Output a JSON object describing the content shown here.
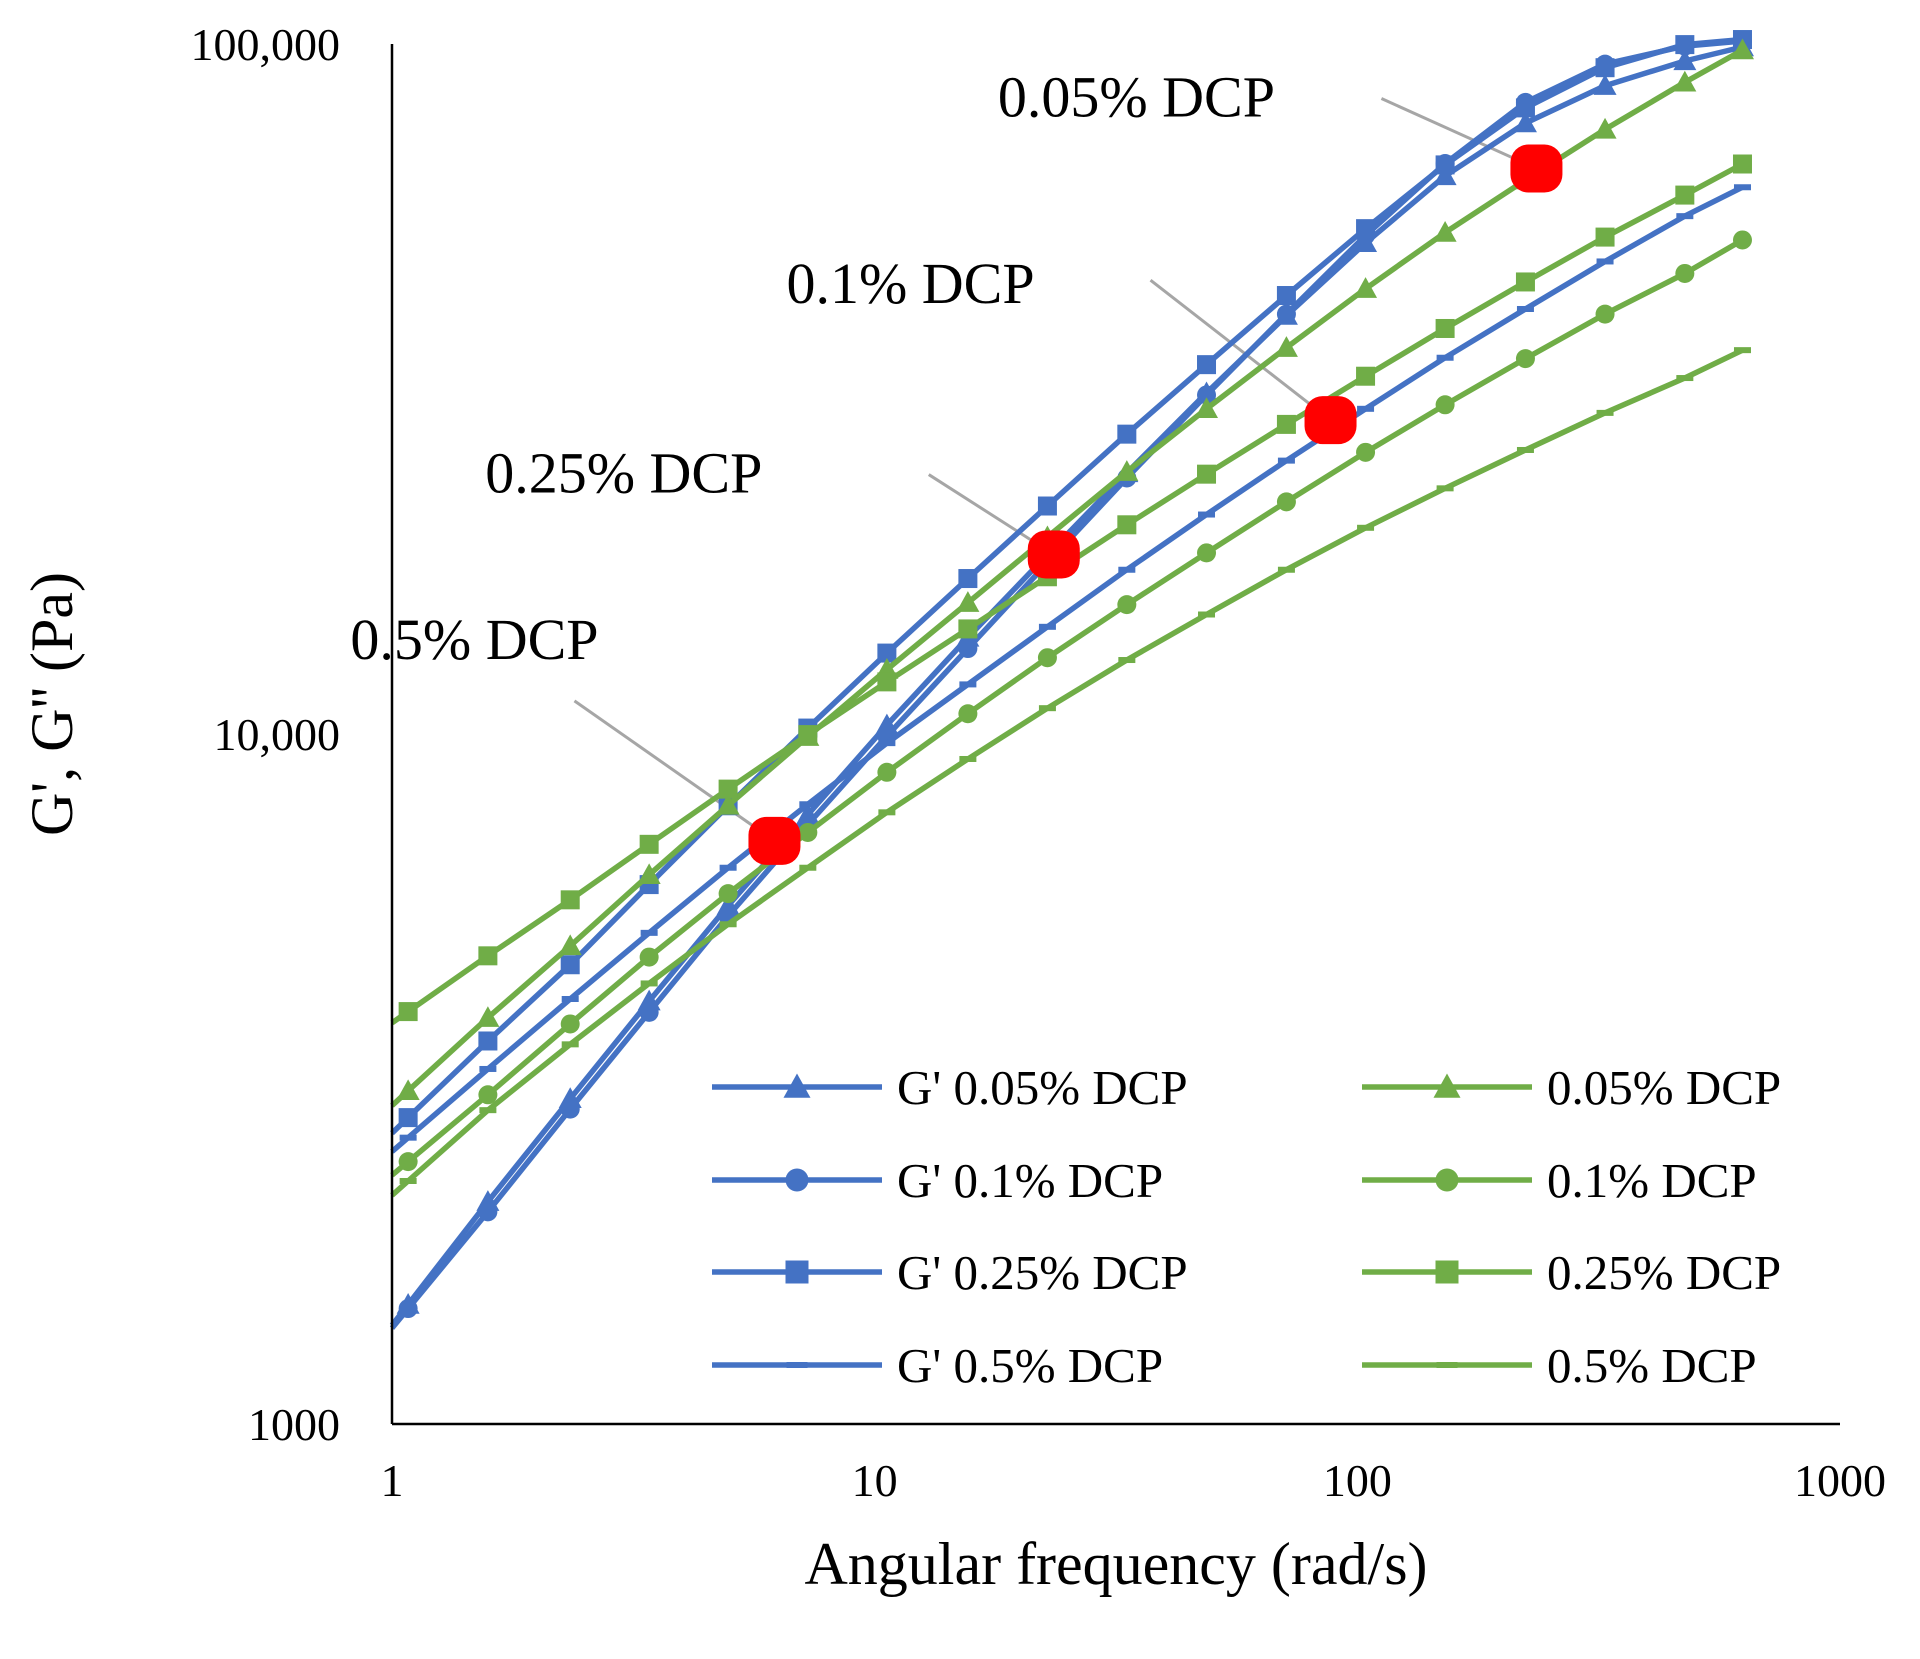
{
  "chart_data": {
    "type": "line",
    "xlabel": "Angular frequency (rad/s)",
    "ylabel": "G', G'' (Pa)",
    "x_scale": "log",
    "y_scale": "log",
    "xlim": [
      1,
      1000
    ],
    "ylim": [
      1000,
      100000
    ],
    "x_ticks": [
      {
        "value": 1,
        "label": "1"
      },
      {
        "value": 10,
        "label": "10"
      },
      {
        "value": 100,
        "label": "100"
      },
      {
        "value": 1000,
        "label": "1000"
      }
    ],
    "y_ticks": [
      {
        "value": 1000,
        "label": "1000"
      },
      {
        "value": 10000,
        "label": "10,000"
      },
      {
        "value": 100000,
        "label": "100,000"
      }
    ],
    "grid": false,
    "legend_placement": "bottom-right",
    "x": [
      1.08,
      1.58,
      2.34,
      3.41,
      4.97,
      7.27,
      10.6,
      15.6,
      22.8,
      33.3,
      48.7,
      71.3,
      104,
      152,
      223,
      326,
      477,
      628
    ],
    "series": [
      {
        "name": "G' 0.05% DCP",
        "color": "#4472C4",
        "marker": "triangle",
        "values": [
          1490,
          2100,
          2960,
          4100,
          5640,
          7640,
          10300,
          13800,
          18200,
          23900,
          31200,
          40400,
          51500,
          64400,
          76800,
          87000,
          94500,
          99000
        ]
      },
      {
        "name": "G' 0.1% DCP",
        "color": "#4472C4",
        "marker": "circle",
        "values": [
          1470,
          2030,
          2860,
          3950,
          5450,
          7390,
          9930,
          13300,
          17700,
          23500,
          31000,
          40600,
          52800,
          67100,
          82300,
          93500,
          99300,
          101000
        ]
      },
      {
        "name": "G' 0.25% DCP",
        "color": "#4472C4",
        "marker": "square",
        "values": [
          2780,
          3590,
          4630,
          6050,
          7870,
          10200,
          13100,
          16800,
          21400,
          27200,
          34300,
          43200,
          54000,
          66800,
          80800,
          92400,
          99800,
          101500
        ]
      },
      {
        "name": "G' 0.5% DCP",
        "color": "#4472C4",
        "marker": "dash",
        "values": [
          2600,
          3270,
          4130,
          5150,
          6400,
          7910,
          9700,
          11800,
          14300,
          17300,
          20800,
          24900,
          29600,
          35100,
          41300,
          48400,
          56300,
          62000
        ]
      },
      {
        "name": " 0.05% DCP",
        "color": "#70AD47",
        "marker": "triangle",
        "values": [
          3040,
          3880,
          4930,
          6250,
          7880,
          9910,
          12400,
          15500,
          19300,
          24000,
          29600,
          36300,
          44200,
          53300,
          63500,
          75200,
          88000,
          98000
        ]
      },
      {
        "name": " 0.1% DCP",
        "color": "#70AD47",
        "marker": "circle",
        "values": [
          2400,
          3000,
          3800,
          4750,
          5870,
          7200,
          8800,
          10700,
          12900,
          15400,
          18300,
          21700,
          25600,
          30000,
          35000,
          40600,
          46500,
          52000
        ]
      },
      {
        "name": " 0.25% DCP",
        "color": "#70AD47",
        "marker": "square",
        "values": [
          3960,
          4770,
          5750,
          6920,
          8320,
          9980,
          11900,
          14200,
          16900,
          20100,
          23800,
          28100,
          33000,
          38700,
          45200,
          52500,
          60400,
          67000
        ]
      },
      {
        "name": " 0.5% DCP",
        "color": "#70AD47",
        "marker": "dash",
        "values": [
          2250,
          2850,
          3550,
          4350,
          5300,
          6400,
          7700,
          9200,
          10900,
          12800,
          14900,
          17300,
          19900,
          22700,
          25800,
          29200,
          32800,
          36000
        ]
      }
    ],
    "crossovers": [
      {
        "label": "0.05% DCP",
        "x": 235,
        "y": 66000
      },
      {
        "label": "0.1% DCP",
        "x": 88,
        "y": 28500
      },
      {
        "label": "0.25% DCP",
        "x": 23.5,
        "y": 18200
      },
      {
        "label": "0.5% DCP",
        "x": 6.2,
        "y": 7000
      }
    ],
    "crossover_color": "#FF0000"
  }
}
